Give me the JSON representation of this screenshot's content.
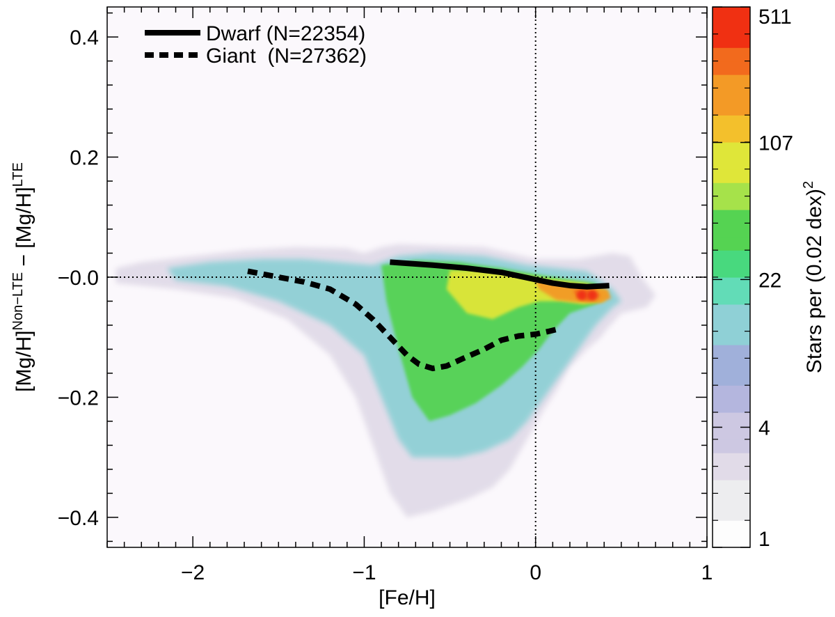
{
  "chart_data": {
    "type": "heatmap",
    "xlabel": "[Fe/H]",
    "ylabel": {
      "base1": "[Mg/H]",
      "sup1": "Non−LTE",
      "mid": " − ",
      "base2": "[Mg/H]",
      "sup2": "LTE"
    },
    "xlim": [
      -2.5,
      1.0
    ],
    "ylim": [
      -0.45,
      0.45
    ],
    "xticks": [
      {
        "value": -2,
        "label": "−2"
      },
      {
        "value": -1,
        "label": "−1"
      },
      {
        "value": 0,
        "label": "0"
      },
      {
        "value": 1,
        "label": "1"
      }
    ],
    "yticks": [
      {
        "value": 0.4,
        "label": "0.4"
      },
      {
        "value": 0.2,
        "label": "0.2"
      },
      {
        "value": 0.0,
        "label": "−0.0"
      },
      {
        "value": -0.2,
        "label": "−0.2"
      },
      {
        "value": -0.4,
        "label": "−0.4"
      }
    ],
    "reference_lines": [
      {
        "orientation": "horizontal",
        "value": 0.0,
        "style": "dotted"
      },
      {
        "orientation": "vertical",
        "value": 0.0,
        "style": "dotted"
      }
    ],
    "legend": {
      "position": "top-left",
      "entries": [
        {
          "label": "Dwarf (N=22354)",
          "style": "solid"
        },
        {
          "label": "Giant  (N=27362)",
          "style": "dashed"
        }
      ]
    },
    "series": [
      {
        "name": "Dwarf",
        "style": "solid",
        "x": [
          -0.85,
          -0.6,
          -0.4,
          -0.2,
          0.0,
          0.1,
          0.2,
          0.3,
          0.43
        ],
        "y": [
          0.025,
          0.02,
          0.015,
          0.008,
          -0.004,
          -0.01,
          -0.014,
          -0.016,
          -0.014
        ]
      },
      {
        "name": "Giant",
        "style": "dashed",
        "x": [
          -1.68,
          -1.5,
          -1.35,
          -1.2,
          -1.05,
          -0.95,
          -0.85,
          -0.75,
          -0.68,
          -0.6,
          -0.52,
          -0.42,
          -0.3,
          -0.2,
          -0.1,
          0.0,
          0.08,
          0.15
        ],
        "y": [
          0.01,
          0.0,
          -0.008,
          -0.02,
          -0.045,
          -0.07,
          -0.1,
          -0.13,
          -0.145,
          -0.152,
          -0.148,
          -0.135,
          -0.12,
          -0.105,
          -0.098,
          -0.095,
          -0.09,
          -0.085
        ]
      }
    ],
    "density_regions": [
      {
        "level": 3,
        "x": [
          -2.45,
          -2.3,
          -2.0,
          -1.7,
          -1.4,
          -1.1,
          -1.0,
          -0.9,
          -0.8,
          -0.3,
          0.0,
          0.25,
          0.45,
          0.55,
          0.62,
          0.7,
          0.65,
          0.5,
          0.42,
          0.38,
          0.3,
          0.2,
          0.12,
          0.05,
          -0.05,
          -0.15,
          -0.25,
          -0.4,
          -0.6,
          -0.75,
          -0.85,
          -0.95,
          -1.05,
          -1.2,
          -1.45,
          -1.75,
          -2.1,
          -2.45
        ],
        "y": [
          0.015,
          0.025,
          0.035,
          0.045,
          0.05,
          0.048,
          0.04,
          0.05,
          0.055,
          0.05,
          0.03,
          0.03,
          0.04,
          0.035,
          0.0,
          -0.03,
          -0.05,
          -0.06,
          -0.085,
          -0.1,
          -0.12,
          -0.15,
          -0.19,
          -0.22,
          -0.27,
          -0.32,
          -0.35,
          -0.37,
          -0.39,
          -0.4,
          -0.36,
          -0.28,
          -0.2,
          -0.13,
          -0.07,
          -0.035,
          -0.02,
          -0.01
        ]
      },
      {
        "level": 13,
        "x": [
          -2.15,
          -1.9,
          -1.6,
          -1.35,
          -1.15,
          -0.95,
          -0.8,
          -0.6,
          -0.3,
          -0.05,
          0.3,
          0.45,
          0.5,
          0.45,
          0.35,
          0.25,
          0.15,
          0.05,
          -0.05,
          -0.15,
          -0.3,
          -0.45,
          -0.6,
          -0.72,
          -0.8,
          -0.9,
          -1.0,
          -1.2,
          -1.5,
          -1.8,
          -2.1
        ],
        "y": [
          0.015,
          0.025,
          0.03,
          0.03,
          0.025,
          0.02,
          0.035,
          0.04,
          0.035,
          0.02,
          0.01,
          -0.02,
          -0.04,
          -0.05,
          -0.08,
          -0.12,
          -0.16,
          -0.2,
          -0.24,
          -0.27,
          -0.29,
          -0.3,
          -0.3,
          -0.3,
          -0.27,
          -0.2,
          -0.13,
          -0.08,
          -0.04,
          -0.015,
          -0.005
        ]
      },
      {
        "level": 45,
        "x": [
          -0.9,
          -0.7,
          -0.45,
          -0.2,
          0.1,
          0.35,
          0.42,
          0.35,
          0.2,
          0.1,
          0.02,
          -0.08,
          -0.2,
          -0.35,
          -0.5,
          -0.62,
          -0.72,
          -0.8,
          -0.87
        ],
        "y": [
          0.02,
          0.028,
          0.025,
          0.015,
          0.0,
          -0.01,
          -0.03,
          -0.045,
          -0.06,
          -0.09,
          -0.12,
          -0.15,
          -0.18,
          -0.21,
          -0.23,
          -0.24,
          -0.2,
          -0.12,
          -0.04
        ]
      },
      {
        "level": 100,
        "x": [
          -0.5,
          -0.3,
          -0.1,
          0.1,
          0.3,
          0.42,
          0.4,
          0.28,
          0.15,
          0.02,
          -0.1,
          -0.25,
          -0.4,
          -0.52
        ],
        "y": [
          0.012,
          0.012,
          0.005,
          -0.004,
          -0.01,
          -0.025,
          -0.04,
          -0.045,
          -0.04,
          -0.04,
          -0.05,
          -0.07,
          -0.06,
          -0.02
        ]
      },
      {
        "level": 170,
        "x": [
          0.0,
          0.15,
          0.3,
          0.42,
          0.44,
          0.38,
          0.25,
          0.12,
          0.02
        ],
        "y": [
          -0.005,
          -0.012,
          -0.015,
          -0.02,
          -0.035,
          -0.043,
          -0.042,
          -0.038,
          -0.02
        ]
      },
      {
        "level": 300,
        "x": [
          0.22,
          0.28,
          0.34,
          0.38,
          0.35,
          0.3,
          0.24
        ],
        "y": [
          -0.022,
          -0.02,
          -0.022,
          -0.03,
          -0.038,
          -0.04,
          -0.034
        ]
      }
    ],
    "density_spots": [
      {
        "x": 0.27,
        "y": -0.03,
        "level": 511
      },
      {
        "x": 0.33,
        "y": -0.03,
        "level": 511
      }
    ],
    "colorbar": {
      "label": "Stars per (0.02 dex)",
      "label_sup": "2",
      "scale": "log",
      "range": [
        1,
        511
      ],
      "tick_values": [
        1,
        4,
        22,
        107,
        511
      ],
      "tick_labels": [
        "1",
        "4",
        "22",
        "107",
        "511"
      ],
      "colormap": [
        "#fdfdfd",
        "#ededef",
        "#e1dbe8",
        "#cdc8e2",
        "#b4b6de",
        "#a0b0da",
        "#8fd0d6",
        "#62dcb7",
        "#48d97e",
        "#55d352",
        "#a6e24a",
        "#dfe639",
        "#f3c02c",
        "#f39a26",
        "#f26a1d",
        "#f03012"
      ]
    }
  }
}
